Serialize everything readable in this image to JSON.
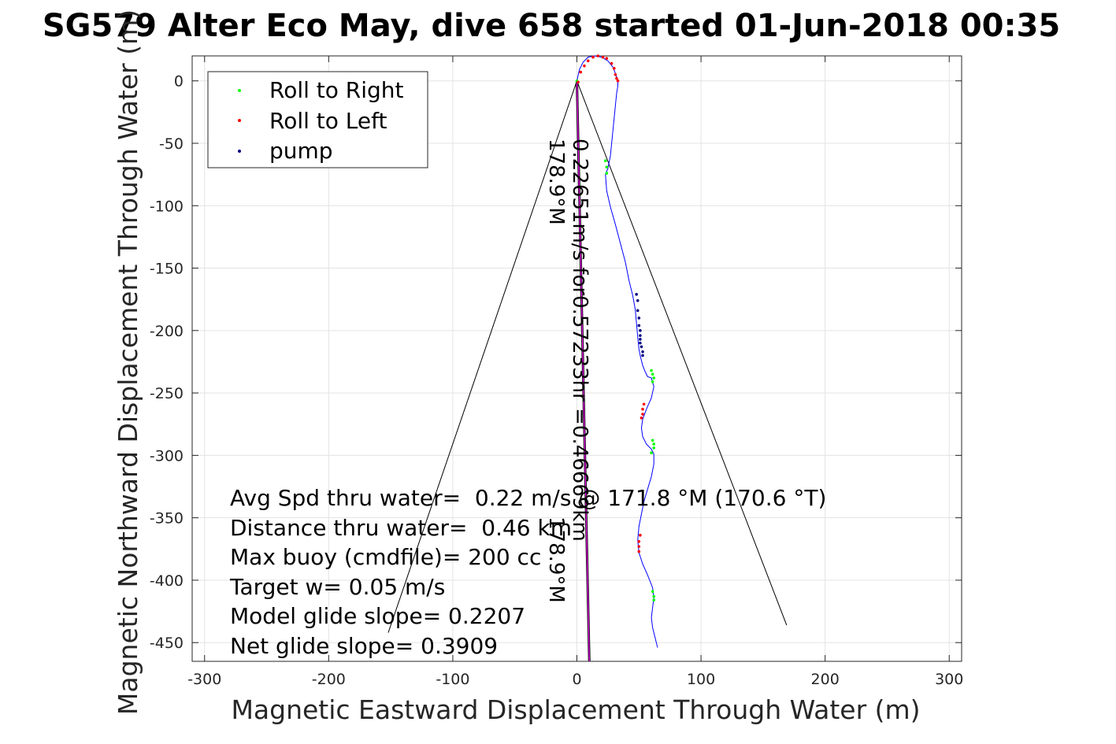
{
  "chart_data": {
    "type": "scatter",
    "title": "SG579 Alter Eco May, dive 658 started 01-Jun-2018 00:35",
    "xlabel": "Magnetic Eastward Displacement Through Water (m)",
    "ylabel": "Magnetic Northward Displacement Through Water (m)",
    "xlim": [
      -310,
      310
    ],
    "ylim": [
      -465,
      20
    ],
    "xticks": [
      -300,
      -200,
      -100,
      0,
      100,
      200,
      300
    ],
    "yticks": [
      0,
      -50,
      -100,
      -150,
      -200,
      -250,
      -300,
      -350,
      -400,
      -450
    ],
    "grid": true,
    "legend_position": "top-left",
    "legend": [
      {
        "label": "Roll to Right",
        "color": "#00ff00"
      },
      {
        "label": "Roll to Left",
        "color": "#ff0000"
      },
      {
        "label": "pump",
        "color": "#000080"
      }
    ],
    "track": {
      "color": "#0000ff",
      "x": [
        0,
        2,
        5,
        9,
        14,
        20,
        25,
        29,
        31,
        33,
        33,
        32,
        31,
        30,
        29,
        28,
        27,
        25,
        23,
        24,
        27,
        31,
        35,
        39,
        42,
        45,
        47,
        48,
        49,
        50,
        51,
        52,
        53,
        55,
        57,
        60,
        62,
        60,
        56,
        53,
        52,
        53,
        56,
        60,
        62,
        62,
        60,
        57,
        54,
        52,
        50,
        49,
        50,
        53,
        57,
        61,
        62,
        61,
        60,
        61,
        63,
        65
      ],
      "y": [
        0,
        9,
        15,
        19,
        20,
        19,
        16,
        11,
        6,
        0,
        -4,
        -10,
        -20,
        -30,
        -40,
        -50,
        -60,
        -70,
        -75,
        -88,
        -101,
        -115,
        -130,
        -145,
        -160,
        -172,
        -183,
        -194,
        -205,
        -215,
        -220,
        -224,
        -228,
        -233,
        -237,
        -238,
        -245,
        -254,
        -263,
        -271,
        -278,
        -285,
        -291,
        -295,
        -299,
        -307,
        -317,
        -327,
        -337,
        -347,
        -357,
        -368,
        -378,
        -387,
        -396,
        -406,
        -414,
        -422,
        -430,
        -438,
        -446,
        -454
      ]
    },
    "roll_right": {
      "x": [
        0,
        23,
        24,
        24,
        60,
        61,
        62,
        61,
        61,
        62,
        62,
        60,
        61,
        62,
        62
      ],
      "y": [
        0,
        -64,
        -69,
        -74,
        -232,
        -235,
        -238,
        -241,
        -288,
        -291,
        -294,
        -298,
        -409,
        -413,
        -416
      ]
    },
    "roll_left": {
      "x": [
        1,
        3,
        6,
        9,
        13,
        17,
        21,
        24,
        28,
        30,
        31,
        32,
        33,
        54,
        53,
        53,
        52,
        51,
        50,
        50,
        50
      ],
      "y": [
        -1,
        7,
        12,
        16,
        19,
        20,
        19,
        18,
        14,
        10,
        5,
        2,
        0,
        -259,
        -263,
        -267,
        -270,
        -364,
        -369,
        -373,
        -377
      ]
    },
    "pump": {
      "x": [
        48,
        49,
        49,
        50,
        50,
        51,
        51,
        51,
        51,
        52,
        53,
        53
      ],
      "y": [
        -171,
        -176,
        -184,
        -190,
        -196,
        -200,
        -204,
        -207,
        -210,
        -213,
        -217,
        -220
      ]
    },
    "cone": {
      "color": "#000000",
      "left_end": {
        "x": -152,
        "y": -442
      },
      "right_end": {
        "x": 169,
        "y": -436
      }
    },
    "heading_line": {
      "color": "#ff00ff",
      "x": [
        0,
        10
      ],
      "y": [
        0,
        -465
      ]
    },
    "rotated_labels": {
      "heading_top": "178.9°M",
      "speed": "0.22651m/s for0.57233hr =0.46669km",
      "heading_bottom": "178.9°M"
    },
    "stats": [
      "Avg Spd thru water=  0.22 m/s @ 171.8 °M (170.6 °T)",
      "Distance thru water=  0.46 km",
      "Max buoy (cmdfile)= 200 cc",
      "Target w= 0.05 m/s",
      "Model glide slope= 0.2207",
      "Net glide slope= 0.3909"
    ]
  }
}
